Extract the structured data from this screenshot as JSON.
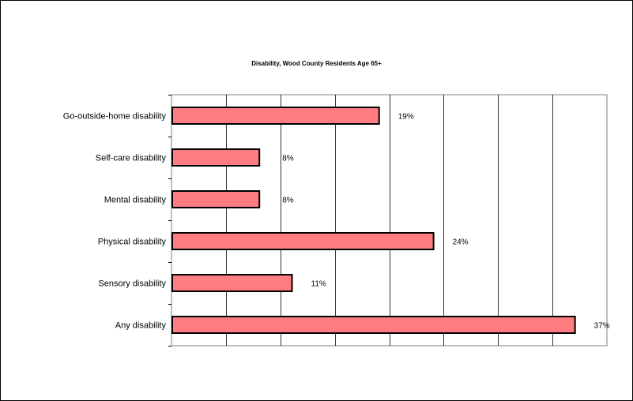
{
  "chart_data": {
    "type": "bar",
    "orientation": "horizontal",
    "title": "Disability, Wood County Residents Age 65+",
    "categories": [
      "Go-outside-home disability",
      "Self-care disability",
      "Mental disability",
      "Physical disability",
      "Sensory disability",
      "Any disability"
    ],
    "values": [
      19,
      8,
      8,
      24,
      11,
      37
    ],
    "value_labels": [
      "19%",
      "8%",
      "8%",
      "24%",
      "11%",
      "37%"
    ],
    "xlim": [
      0,
      40
    ],
    "grid": "vertical",
    "legend": "none",
    "bar_color": "#ff7c80",
    "bar_edge_color": "#000000"
  }
}
